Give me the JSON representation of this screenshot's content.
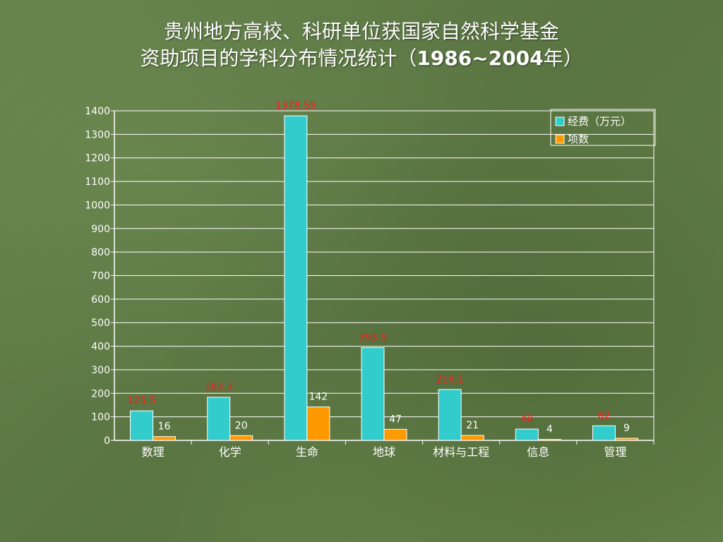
{
  "title": {
    "line1": "贵州地方高校、科研单位获国家自然科学基金",
    "line2_prefix": "资助项目的学科分布情况统计（",
    "line2_years": "1986~2004",
    "line2_suffix": "年）"
  },
  "chart_data": {
    "type": "bar",
    "categories": [
      "数理",
      "化学",
      "生命",
      "地球",
      "材料与工程",
      "信息",
      "管理"
    ],
    "series": [
      {
        "name": "经费（万元）",
        "values": [
          125.5,
          183.3,
          1378.55,
          393.9,
          216.1,
          48,
          62
        ],
        "labels": [
          "125.5",
          "183.3",
          "1378.55",
          "393.9",
          "216.1",
          "48",
          "62"
        ],
        "color": "#33cccc",
        "label_color": "#ff1a1a"
      },
      {
        "name": "项数",
        "values": [
          16,
          20,
          142,
          47,
          21,
          4,
          9
        ],
        "labels": [
          "16",
          "20",
          "142",
          "47",
          "21",
          "4",
          "9"
        ],
        "color": "#ff9900",
        "label_color": "#ffffff"
      }
    ],
    "ylim": [
      0,
      1400
    ],
    "ytick_step": 100,
    "grid": true,
    "legend_position": "top-right"
  },
  "colors": {
    "axis": "#ffffff",
    "gridline": "#ffffff",
    "text": "#ffffff",
    "bar_stroke": "#ffffff"
  }
}
